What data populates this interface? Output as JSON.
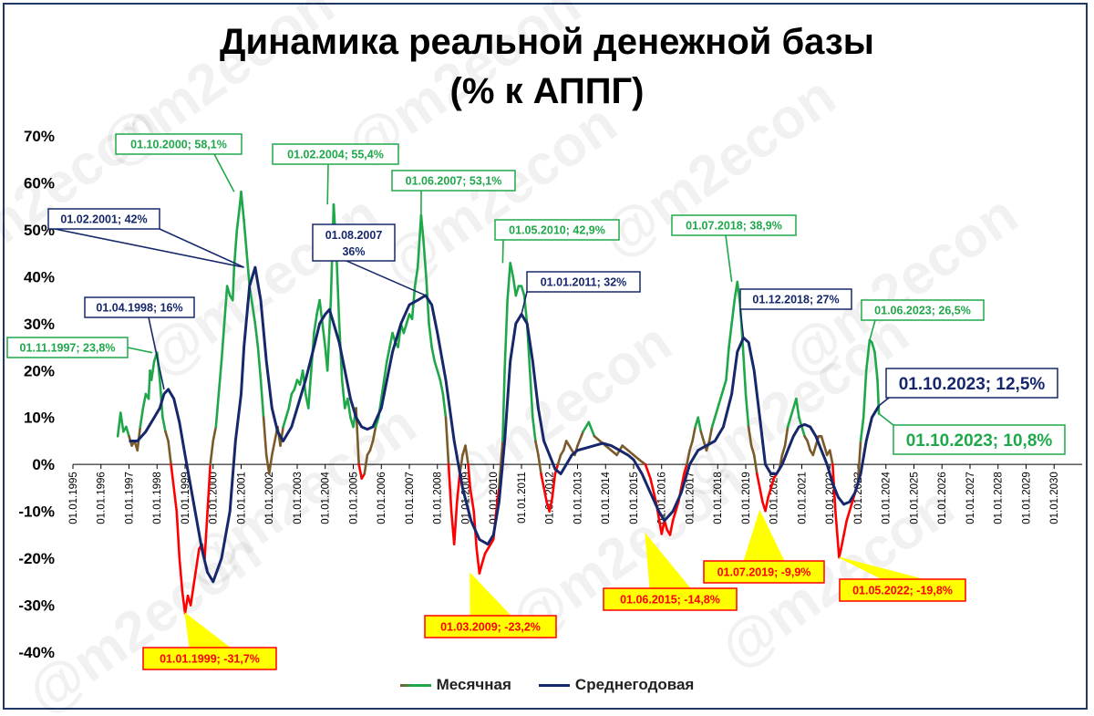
{
  "chart_data": {
    "type": "line",
    "title": "Динамика реальной денежной базы",
    "subtitle": "(% к АППГ)",
    "watermark": "@m2econ",
    "y_ticks": [
      "70%",
      "60%",
      "50%",
      "40%",
      "30%",
      "20%",
      "10%",
      "0%",
      "-10%",
      "-20%",
      "-30%",
      "-40%"
    ],
    "y_tick_values": [
      70,
      60,
      50,
      40,
      30,
      20,
      10,
      0,
      -10,
      -20,
      -30,
      -40
    ],
    "ylim": [
      -40,
      70
    ],
    "x_ticks": [
      "01.01.1995",
      "01.01.1996",
      "01.01.1997",
      "01.01.1998",
      "01.01.1999",
      "01.01.2000",
      "01.01.2001",
      "01.01.2002",
      "01.01.2003",
      "01.01.2004",
      "01.01.2005",
      "01.01.2006",
      "01.01.2007",
      "01.01.2008",
      "01.01.2009",
      "01.01.2010",
      "01.01.2011",
      "01.01.2012",
      "01.01.2013",
      "01.01.2014",
      "01.01.2015",
      "01.01.2016",
      "01.01.2017",
      "01.01.2018",
      "01.01.2019",
      "01.01.2020",
      "01.01.2021",
      "01.01.2022",
      "01.01.2023",
      "01.01.2024",
      "01.01.2025",
      "01.01.2026",
      "01.01.2027",
      "01.01.2028",
      "01.01.2029",
      "01.01.2030"
    ],
    "xlim": [
      1995.0,
      2031.0
    ],
    "colors": {
      "positive": "#1fa84a",
      "negative": "#ff0000",
      "transition": "#7b5a2a",
      "average": "#16286b",
      "red_label_bg": "#ffff00"
    },
    "legend_position": "bottom-center",
    "series": [
      {
        "name": "Месячная",
        "x": [
          1996.6,
          1996.7,
          1996.8,
          1996.9,
          1997.0,
          1997.1,
          1997.2,
          1997.3,
          1997.4,
          1997.5,
          1997.6,
          1997.7,
          1997.75,
          1997.8,
          1997.9,
          1998.0,
          1998.1,
          1998.2,
          1998.3,
          1998.4,
          1998.5,
          1998.6,
          1998.7,
          1998.8,
          1998.9,
          1999.0,
          1999.1,
          1999.2,
          1999.3,
          1999.4,
          1999.5,
          1999.6,
          1999.7,
          1999.8,
          1999.9,
          2000.0,
          2000.1,
          2000.2,
          2000.3,
          2000.4,
          2000.5,
          2000.6,
          2000.7,
          2000.75,
          2000.85,
          2000.95,
          2001.0,
          2001.1,
          2001.2,
          2001.3,
          2001.4,
          2001.5,
          2001.6,
          2001.7,
          2001.8,
          2001.9,
          2002.0,
          2002.1,
          2002.2,
          2002.3,
          2002.4,
          2002.5,
          2002.6,
          2002.7,
          2002.8,
          2002.9,
          2003.0,
          2003.1,
          2003.2,
          2003.3,
          2003.4,
          2003.5,
          2003.6,
          2003.7,
          2003.8,
          2003.9,
          2004.0,
          2004.08,
          2004.2,
          2004.3,
          2004.4,
          2004.5,
          2004.6,
          2004.7,
          2004.8,
          2004.9,
          2005.0,
          2005.1,
          2005.2,
          2005.3,
          2005.4,
          2005.5,
          2005.6,
          2005.7,
          2005.8,
          2005.9,
          2006.0,
          2006.1,
          2006.2,
          2006.3,
          2006.4,
          2006.5,
          2006.6,
          2006.7,
          2006.8,
          2006.9,
          2007.0,
          2007.1,
          2007.2,
          2007.3,
          2007.42,
          2007.5,
          2007.6,
          2007.7,
          2007.8,
          2007.9,
          2008.0,
          2008.1,
          2008.2,
          2008.3,
          2008.4,
          2008.5,
          2008.6,
          2008.7,
          2008.8,
          2008.9,
          2009.0,
          2009.1,
          2009.17,
          2009.3,
          2009.4,
          2009.5,
          2009.6,
          2009.7,
          2009.8,
          2009.9,
          2010.0,
          2010.1,
          2010.2,
          2010.33,
          2010.4,
          2010.5,
          2010.6,
          2010.7,
          2010.8,
          2010.9,
          2011.0,
          2011.1,
          2011.2,
          2011.3,
          2011.4,
          2011.5,
          2011.6,
          2011.7,
          2011.8,
          2011.9,
          2012.0,
          2012.1,
          2012.2,
          2012.3,
          2012.4,
          2012.5,
          2012.6,
          2012.7,
          2012.8,
          2012.9,
          2013.0,
          2013.2,
          2013.4,
          2013.6,
          2013.8,
          2014.0,
          2014.2,
          2014.4,
          2014.6,
          2014.8,
          2015.0,
          2015.2,
          2015.42,
          2015.6,
          2015.8,
          2016.0,
          2016.1,
          2016.2,
          2016.3,
          2016.4,
          2016.5,
          2016.6,
          2016.7,
          2016.8,
          2016.9,
          2017.0,
          2017.1,
          2017.2,
          2017.3,
          2017.4,
          2017.5,
          2017.6,
          2017.7,
          2017.8,
          2017.9,
          2018.0,
          2018.1,
          2018.2,
          2018.3,
          2018.4,
          2018.5,
          2018.6,
          2018.7,
          2018.8,
          2018.9,
          2019.0,
          2019.1,
          2019.2,
          2019.3,
          2019.4,
          2019.5,
          2019.6,
          2019.7,
          2019.8,
          2019.9,
          2020.0,
          2020.1,
          2020.2,
          2020.3,
          2020.4,
          2020.5,
          2020.6,
          2020.7,
          2020.8,
          2020.9,
          2021.0,
          2021.1,
          2021.2,
          2021.3,
          2021.4,
          2021.5,
          2021.6,
          2021.7,
          2021.8,
          2021.9,
          2022.0,
          2022.1,
          2022.2,
          2022.33,
          2022.4,
          2022.5,
          2022.6,
          2022.7,
          2022.8,
          2022.9,
          2023.0,
          2023.1,
          2023.2,
          2023.3,
          2023.42,
          2023.5,
          2023.6,
          2023.7,
          2023.75
        ],
        "values": [
          6,
          11,
          7,
          8,
          6,
          4,
          5,
          3,
          8,
          12,
          15,
          14,
          20,
          18,
          22,
          23.8,
          18,
          10,
          7,
          5,
          0,
          -5,
          -10,
          -20,
          -27,
          -31.7,
          -28,
          -30,
          -26,
          -22,
          -18,
          -17,
          -20,
          -10,
          0,
          5,
          8,
          15,
          22,
          30,
          38,
          36,
          35,
          42,
          50,
          55,
          58.1,
          52,
          45,
          38,
          34,
          30,
          25,
          18,
          10,
          2,
          -2,
          2,
          5,
          8,
          4,
          8,
          10,
          12,
          15,
          16,
          18,
          17,
          20,
          15,
          12,
          20,
          28,
          32,
          35,
          30,
          25,
          20,
          35,
          55.4,
          45,
          30,
          18,
          12,
          14,
          10,
          8,
          12,
          0,
          -3,
          -2,
          2,
          3,
          5,
          8,
          10,
          14,
          18,
          22,
          25,
          28,
          26,
          25,
          30,
          28,
          30,
          32,
          31,
          38,
          42,
          53.1,
          48,
          40,
          30,
          25,
          22,
          20,
          18,
          15,
          10,
          0,
          -10,
          -17,
          -8,
          -2,
          2,
          4,
          0,
          -5,
          -10,
          -18,
          -23.2,
          -21,
          -19,
          -18,
          -17,
          -16,
          -10,
          -5,
          5,
          20,
          35,
          42.9,
          40,
          36,
          38,
          38,
          36,
          30,
          20,
          10,
          5,
          2,
          -2,
          -5,
          -8,
          -10,
          -7,
          -2,
          0,
          2,
          3,
          5,
          4,
          3,
          2,
          4,
          7,
          9,
          6,
          5,
          4,
          3,
          2,
          4,
          3,
          2,
          1,
          0,
          -3,
          -8,
          -14.8,
          -12,
          -14,
          -15,
          -12,
          -10,
          -8,
          -5,
          -2,
          0,
          3,
          5,
          8,
          10,
          7,
          5,
          3,
          5,
          8,
          10,
          12,
          14,
          16,
          18,
          25,
          30,
          35,
          38.9,
          34,
          25,
          15,
          8,
          4,
          2,
          -2,
          -5,
          -8,
          -9.9,
          -7,
          -5,
          -3,
          -2,
          -1,
          2,
          4,
          8,
          10,
          12,
          14,
          10,
          8,
          6,
          5,
          3,
          2,
          4,
          6,
          6,
          4,
          2,
          3,
          0,
          -10,
          -19.8,
          -18,
          -15,
          -12,
          -10,
          -8,
          -6,
          -4,
          5,
          10,
          20,
          26.5,
          26,
          24,
          18,
          10.8
        ]
      },
      {
        "name": "Среднегодовая",
        "x": [
          1997.0,
          1997.3,
          1997.6,
          1997.9,
          1998.1,
          1998.25,
          1998.4,
          1998.6,
          1998.8,
          1999.0,
          1999.3,
          1999.6,
          1999.8,
          2000.0,
          2000.3,
          2000.6,
          2000.8,
          2001.0,
          2001.1,
          2001.3,
          2001.5,
          2001.7,
          2001.9,
          2002.1,
          2002.3,
          2002.5,
          2002.8,
          2003.0,
          2003.3,
          2003.6,
          2003.8,
          2004.0,
          2004.15,
          2004.3,
          2004.5,
          2004.7,
          2004.9,
          2005.1,
          2005.3,
          2005.5,
          2005.7,
          2006.0,
          2006.2,
          2006.4,
          2006.7,
          2007.0,
          2007.3,
          2007.58,
          2007.8,
          2008.0,
          2008.3,
          2008.6,
          2008.9,
          2009.2,
          2009.5,
          2009.8,
          2010.0,
          2010.2,
          2010.4,
          2010.6,
          2010.8,
          2011.0,
          2011.2,
          2011.4,
          2011.6,
          2011.8,
          2012.0,
          2012.2,
          2012.4,
          2012.6,
          2012.8,
          2013.0,
          2013.3,
          2013.6,
          2013.9,
          2014.2,
          2014.5,
          2014.8,
          2015.0,
          2015.3,
          2015.6,
          2015.9,
          2016.1,
          2016.4,
          2016.7,
          2017.0,
          2017.3,
          2017.6,
          2017.9,
          2018.2,
          2018.5,
          2018.7,
          2018.92,
          2019.1,
          2019.3,
          2019.5,
          2019.7,
          2019.9,
          2020.1,
          2020.3,
          2020.5,
          2020.7,
          2020.9,
          2021.1,
          2021.3,
          2021.5,
          2021.7,
          2021.9,
          2022.1,
          2022.3,
          2022.5,
          2022.7,
          2022.9,
          2023.1,
          2023.3,
          2023.5,
          2023.75
        ],
        "values": [
          5,
          5,
          7,
          10,
          12,
          15,
          16,
          14,
          9,
          2,
          -8,
          -18,
          -23,
          -25,
          -20,
          -10,
          5,
          15,
          25,
          38,
          42,
          35,
          22,
          12,
          7,
          5,
          8,
          12,
          18,
          25,
          30,
          32,
          33,
          30,
          26,
          20,
          14,
          10,
          8,
          7.5,
          8,
          12,
          18,
          24,
          30,
          34,
          35,
          36,
          34,
          28,
          18,
          5,
          -5,
          -12,
          -16,
          -17,
          -15,
          -8,
          5,
          22,
          30,
          32,
          30,
          22,
          12,
          5,
          2,
          -1,
          -2,
          0,
          2,
          3,
          3.5,
          4,
          4.5,
          4,
          3,
          2,
          1,
          -2,
          -6,
          -10,
          -12,
          -10,
          -6,
          0,
          3,
          4,
          5,
          8,
          15,
          24,
          27,
          26,
          20,
          10,
          0,
          -2,
          -2,
          0,
          3,
          6,
          8,
          8.5,
          8,
          6,
          3,
          0,
          -4,
          -7,
          -8.5,
          -8,
          -6,
          -2,
          5,
          10,
          12.5
        ]
      }
    ],
    "annotations": [
      {
        "text": "01.11.1997; 23,8%",
        "type": "max"
      },
      {
        "text": "01.10.2000; 58,1%",
        "type": "max"
      },
      {
        "text": "01.02.2004; 55,4%",
        "type": "max"
      },
      {
        "text": "01.06.2007; 53,1%",
        "type": "max"
      },
      {
        "text": "01.05.2010; 42,9%",
        "type": "max"
      },
      {
        "text": "01.07.2018; 38,9%",
        "type": "max"
      },
      {
        "text": "01.06.2023; 26,5%",
        "type": "max"
      },
      {
        "text": "01.10.2023; 10,8%",
        "type": "last_monthly"
      },
      {
        "text": "01.04.1998; 16%",
        "type": "avg"
      },
      {
        "text": "01.02.2001; 42%",
        "type": "avg"
      },
      {
        "text": "01.08.2007",
        "text2": "36%",
        "type": "avg"
      },
      {
        "text": "01.01.2011; 32%",
        "type": "avg"
      },
      {
        "text": "01.12.2018; 27%",
        "type": "avg"
      },
      {
        "text": "01.10.2023; 12,5%",
        "type": "last_avg"
      },
      {
        "text": "01.01.1999; -31,7%",
        "type": "min"
      },
      {
        "text": "01.03.2009; -23,2%",
        "type": "min"
      },
      {
        "text": "01.06.2015; -14,8%",
        "type": "min"
      },
      {
        "text": "01.07.2019; -9,9%",
        "type": "min"
      },
      {
        "text": "01.05.2022; -19,8%",
        "type": "min"
      }
    ]
  }
}
